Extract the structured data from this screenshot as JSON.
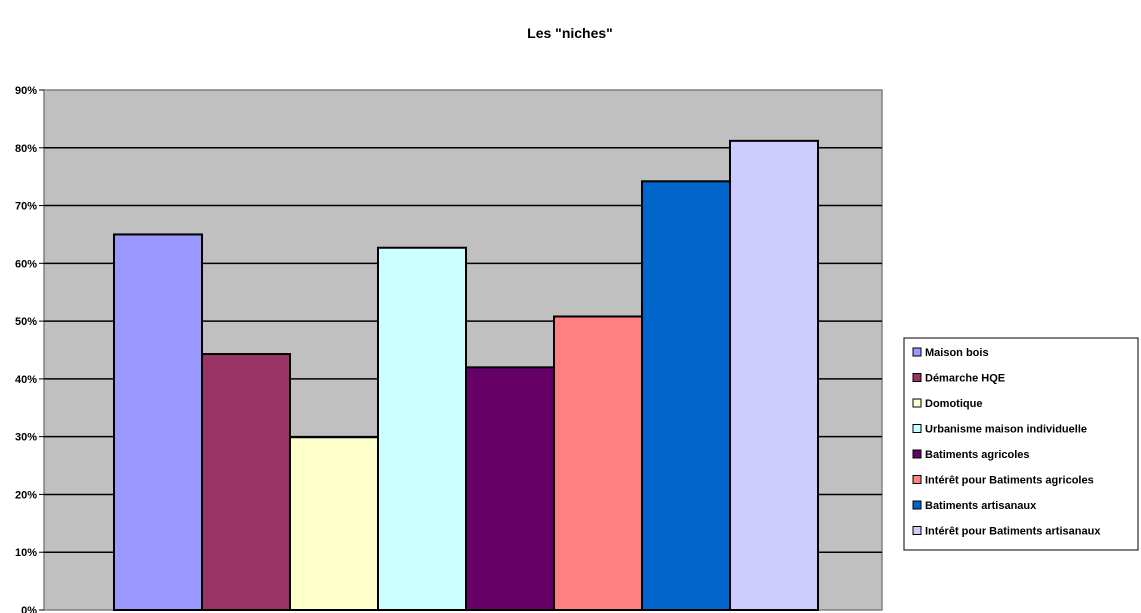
{
  "chart_data": {
    "type": "bar",
    "title": "Les \"niches\"",
    "xlabel": "",
    "ylabel": "",
    "ylim": [
      0,
      0.9
    ],
    "yticks": [
      0,
      0.1,
      0.2,
      0.3,
      0.4,
      0.5,
      0.6,
      0.7,
      0.8,
      0.9
    ],
    "ytick_labels": [
      "0%",
      "10%",
      "20%",
      "30%",
      "40%",
      "50%",
      "60%",
      "70%",
      "80%",
      "90%"
    ],
    "grid": true,
    "legend_position": "right",
    "plot_background": "#c0c0c0",
    "series": [
      {
        "name": "Maison bois",
        "value": 0.65,
        "color": "#9999ff"
      },
      {
        "name": "Démarche HQE",
        "value": 0.443,
        "color": "#993366"
      },
      {
        "name": "Domotique",
        "value": 0.299,
        "color": "#ffffcc"
      },
      {
        "name": "Urbanisme maison individuelle",
        "value": 0.627,
        "color": "#ccffff"
      },
      {
        "name": "Batiments agricoles",
        "value": 0.42,
        "color": "#660066"
      },
      {
        "name": "Intérêt pour Batiments agricoles",
        "value": 0.508,
        "color": "#ff8080"
      },
      {
        "name": "Batiments artisanaux",
        "value": 0.742,
        "color": "#0066cc"
      },
      {
        "name": "Intérêt pour Batiments artisanaux",
        "value": 0.812,
        "color": "#ccccff"
      }
    ]
  }
}
